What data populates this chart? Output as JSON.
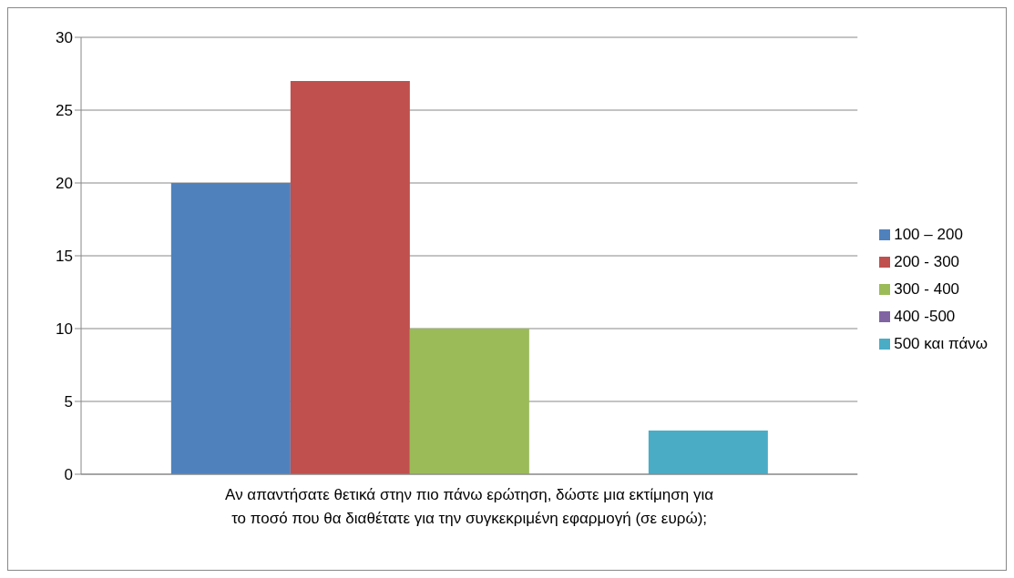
{
  "chart_data": {
    "type": "bar",
    "categories": [
      "Αν απαντήσατε θετικά στην πιο πάνω ερώτηση, δώστε μια εκτίμηση για το ποσό που θα διαθέτατε για την συγκεκριμένη εφαρμογή (σε ευρώ);"
    ],
    "series": [
      {
        "name": "100 – 200",
        "color": "#4f81bd",
        "values": [
          20
        ]
      },
      {
        "name": "200 - 300",
        "color": "#c0504d",
        "values": [
          27
        ]
      },
      {
        "name": "300 - 400",
        "color": "#9bbb59",
        "values": [
          10
        ]
      },
      {
        "name": "400 -500",
        "color": "#8064a2",
        "values": [
          0
        ]
      },
      {
        "name": "500  και πάνω",
        "color": "#4bacc6",
        "values": [
          3
        ]
      }
    ],
    "ylim": [
      0,
      30
    ],
    "yticks": [
      0,
      5,
      10,
      15,
      20,
      25,
      30
    ],
    "grid": "y",
    "legend": "right"
  }
}
